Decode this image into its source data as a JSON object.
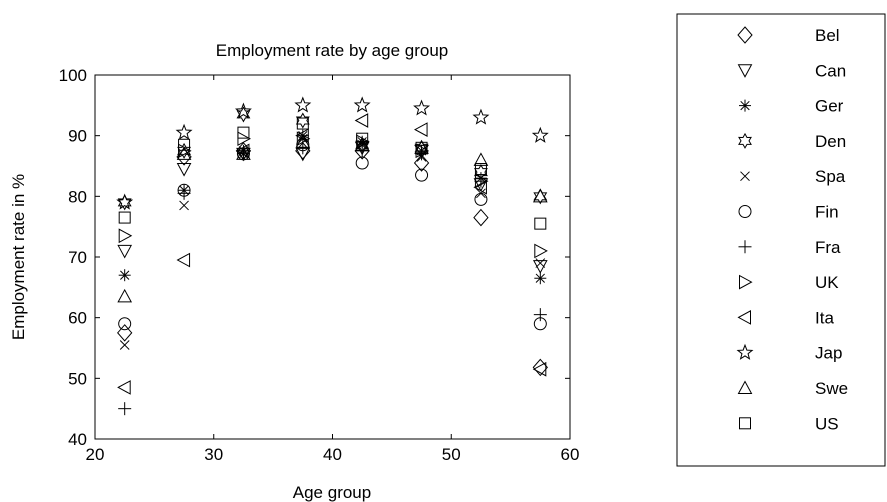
{
  "chart_data": {
    "type": "scatter",
    "title": "Employment rate by age group",
    "xlabel": "Age group",
    "ylabel": "Employment rate in %",
    "xlim": [
      20,
      60
    ],
    "ylim": [
      40,
      100
    ],
    "xticks": [
      20,
      30,
      40,
      50,
      60
    ],
    "yticks": [
      40,
      50,
      60,
      70,
      80,
      90,
      100
    ],
    "grid": false,
    "legend_position": "right, outside plot",
    "x": [
      22.5,
      27.5,
      32.5,
      37.5,
      42.5,
      47.5,
      52.5,
      57.5
    ],
    "series": [
      {
        "name": "Bel",
        "marker": "diamond",
        "values": [
          57.5,
          86.5,
          87.5,
          87.5,
          87.5,
          85.5,
          76.5,
          51.8
        ]
      },
      {
        "name": "Can",
        "marker": "triangle-down",
        "values": [
          71.0,
          84.5,
          87.0,
          87.0,
          88.0,
          87.5,
          82.0,
          68.5
        ]
      },
      {
        "name": "Ger",
        "marker": "asterisk",
        "values": [
          67.0,
          81.0,
          87.5,
          90.0,
          89.0,
          87.5,
          83.0,
          66.5
        ]
      },
      {
        "name": "Den",
        "marker": "hexagram",
        "values": [
          79.0,
          87.5,
          93.5,
          92.5,
          88.5,
          88.0,
          84.0,
          80.0
        ]
      },
      {
        "name": "Spa",
        "marker": "x",
        "values": [
          55.5,
          78.5,
          87.0,
          89.5,
          88.5,
          86.5,
          80.5,
          69.0
        ]
      },
      {
        "name": "Fin",
        "marker": "circle",
        "values": [
          59.0,
          81.0,
          87.0,
          88.5,
          85.5,
          83.5,
          79.5,
          59.0
        ]
      },
      {
        "name": "Fra",
        "marker": "plus",
        "values": [
          45.0,
          80.5,
          87.0,
          88.0,
          87.5,
          87.0,
          82.5,
          60.5
        ]
      },
      {
        "name": "UK",
        "marker": "triangle-right",
        "values": [
          73.5,
          87.5,
          89.5,
          89.5,
          89.0,
          87.5,
          82.5,
          71.0
        ]
      },
      {
        "name": "Ita",
        "marker": "triangle-left",
        "values": [
          48.5,
          69.5,
          87.5,
          90.0,
          92.5,
          91.0,
          81.5,
          51.5
        ]
      },
      {
        "name": "Jap",
        "marker": "pentagram",
        "values": [
          79.0,
          90.5,
          94.0,
          95.0,
          95.0,
          94.5,
          93.0,
          90.0
        ]
      },
      {
        "name": "Swe",
        "marker": "triangle-up",
        "values": [
          63.5,
          87.0,
          87.0,
          89.0,
          88.5,
          88.0,
          86.0,
          80.0
        ]
      },
      {
        "name": "US",
        "marker": "square",
        "values": [
          76.5,
          88.5,
          90.5,
          92.0,
          89.5,
          88.0,
          84.5,
          75.5
        ]
      }
    ]
  }
}
